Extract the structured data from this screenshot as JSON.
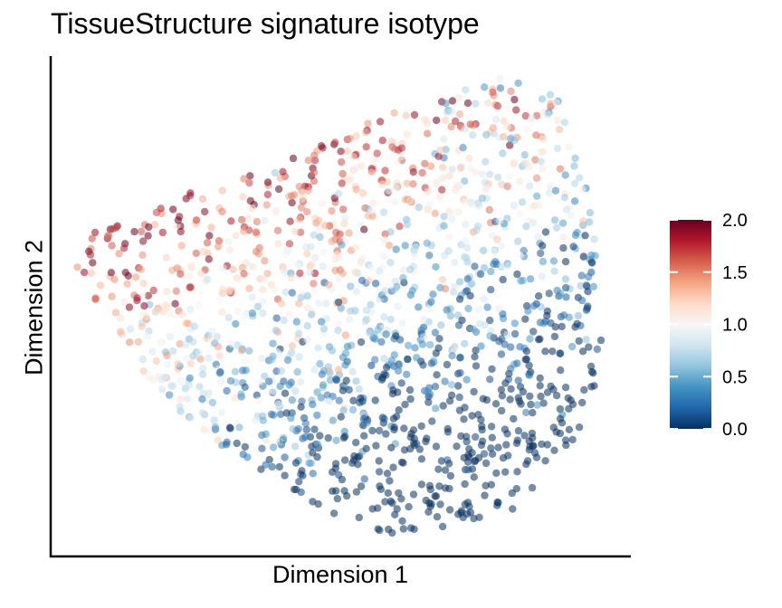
{
  "chart_data": {
    "type": "scatter",
    "title": "TissueStructure signature isotype",
    "xlabel": "Dimension 1",
    "ylabel": "Dimension 2",
    "axis_ticks": "none",
    "grid": false,
    "colorbar": {
      "palette": "RdBu (reversed)",
      "colors": [
        "#053061",
        "#2166ac",
        "#4393c3",
        "#92c5de",
        "#d1e5f0",
        "#f7f7f7",
        "#fddbc7",
        "#f4a582",
        "#d6604d",
        "#b2182b",
        "#67001f"
      ],
      "range": [
        0,
        2
      ],
      "tick_labels": [
        "0.0",
        "0.5",
        "1.0",
        "1.5",
        "2.0"
      ],
      "placement": "right"
    },
    "points": {
      "count_approx": 1500,
      "opacity": 0.55,
      "note_distribution": "high scores (red) in upper-left band, low scores (blue) in lower-right"
    }
  }
}
